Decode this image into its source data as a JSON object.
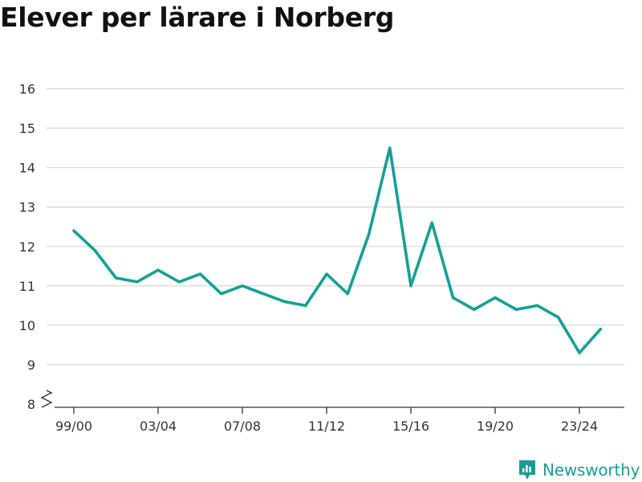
{
  "title": "Elever per lärare i Norberg",
  "brand": {
    "name": "Newsworthy",
    "icon": "newsworthy-logo-icon",
    "color": "#1a9c92"
  },
  "chart_data": {
    "type": "line",
    "title": "Elever per lärare i Norberg",
    "xlabel": "",
    "ylabel": "",
    "x": [
      "99/00",
      "00/01",
      "01/02",
      "02/03",
      "03/04",
      "04/05",
      "05/06",
      "06/07",
      "07/08",
      "08/09",
      "09/10",
      "10/11",
      "11/12",
      "12/13",
      "13/14",
      "14/15",
      "15/16",
      "16/17",
      "17/18",
      "18/19",
      "19/20",
      "20/21",
      "21/22",
      "22/23",
      "23/24",
      "24/25"
    ],
    "series": [
      {
        "color": "#13a096",
        "values": [
          12.4,
          11.9,
          11.2,
          11.1,
          11.4,
          11.1,
          11.3,
          10.8,
          11.0,
          10.8,
          10.6,
          10.5,
          11.3,
          10.8,
          12.3,
          14.5,
          11.0,
          12.6,
          10.7,
          10.4,
          10.7,
          10.4,
          10.5,
          10.2,
          9.3,
          9.9
        ]
      }
    ],
    "x_tick_labels": [
      "99/00",
      "03/04",
      "07/08",
      "11/12",
      "15/16",
      "19/20",
      "23/24"
    ],
    "y_ticks": [
      8,
      9,
      10,
      11,
      12,
      13,
      14,
      15,
      16
    ],
    "ylim": [
      8,
      16
    ],
    "y_axis_break": true,
    "grid": "horizontal",
    "legend": "none"
  }
}
